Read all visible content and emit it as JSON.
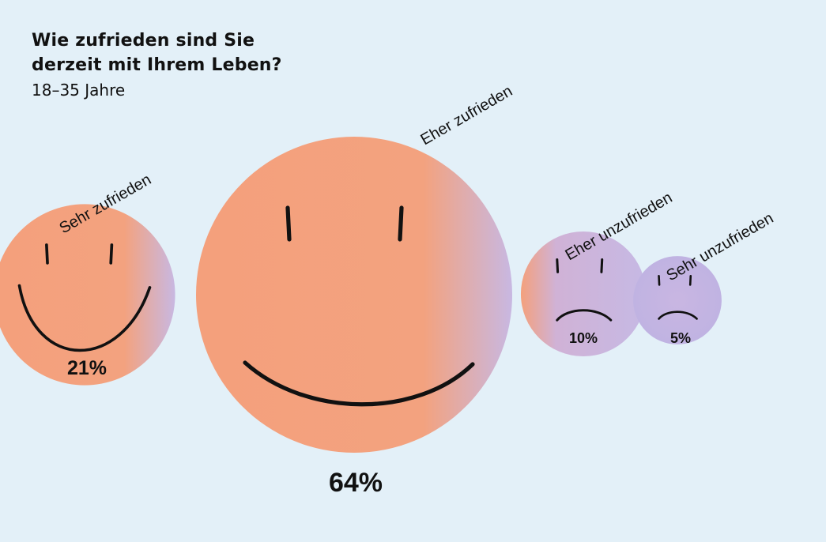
{
  "header": {
    "title": "Wie zufrieden sind Sie\nderzeit mit Ihrem Leben?",
    "subtitle": "18–35 Jahre"
  },
  "colors": {
    "background": "#e3f0f8",
    "face_peach": "#f4a07c",
    "face_lavender": "#c8b8e2",
    "stroke": "#111111"
  },
  "chart_data": {
    "type": "bubble",
    "title": "Wie zufrieden sind Sie derzeit mit Ihrem Leben?",
    "subtitle": "18–35 Jahre",
    "unit": "%",
    "categories": [
      "Sehr zufrieden",
      "Eher zufrieden",
      "Eher unzufrieden",
      "Sehr unzufrieden"
    ],
    "values": [
      21,
      64,
      10,
      5
    ],
    "labels": [
      "21%",
      "64%",
      "10%",
      "5%"
    ],
    "face_expressions": [
      "big-smile",
      "smile",
      "frown",
      "frown"
    ],
    "legend": "none",
    "grid": false
  }
}
